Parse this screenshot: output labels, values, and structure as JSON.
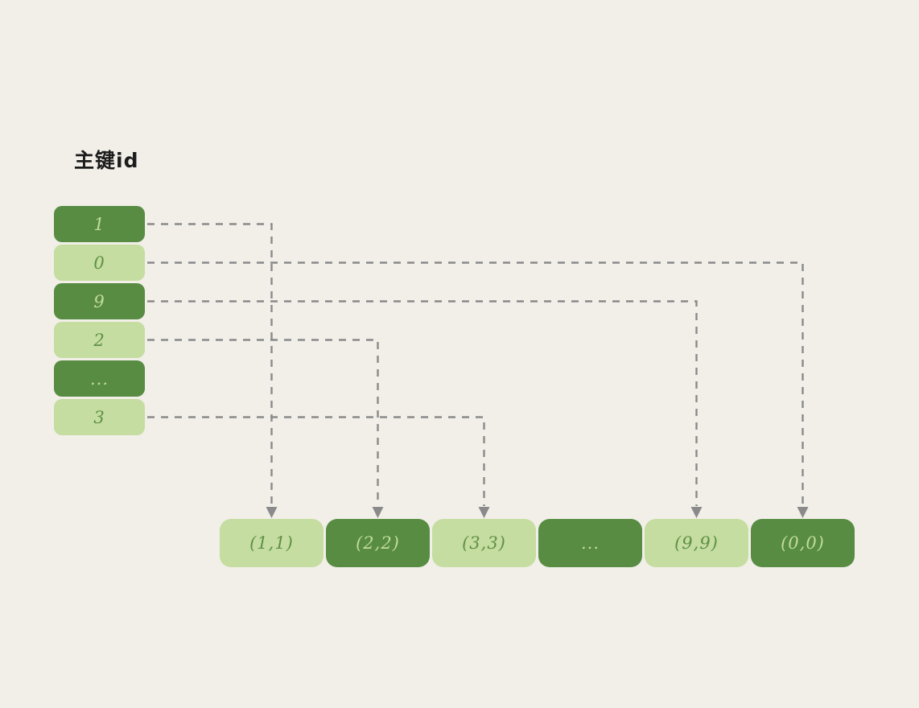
{
  "title": "主键id",
  "colors": {
    "background": "#f1efe8",
    "node_dark": "#578c42",
    "node_light": "#c5dda0",
    "text_on_dark": "#c2dc9a",
    "text_on_light": "#5f9046",
    "connector": "#8a8a8a",
    "title_color": "#1c1c1c"
  },
  "left_column": {
    "items": [
      {
        "label": "1",
        "variant": "dark"
      },
      {
        "label": "0",
        "variant": "light"
      },
      {
        "label": "9",
        "variant": "dark"
      },
      {
        "label": "2",
        "variant": "light"
      },
      {
        "label": "...",
        "variant": "dark"
      },
      {
        "label": "3",
        "variant": "light"
      }
    ]
  },
  "bottom_row": {
    "items": [
      {
        "label": "(1,1)",
        "variant": "light"
      },
      {
        "label": "(2,2)",
        "variant": "dark"
      },
      {
        "label": "(3,3)",
        "variant": "light"
      },
      {
        "label": "...",
        "variant": "dark"
      },
      {
        "label": "(9,9)",
        "variant": "light"
      },
      {
        "label": "(0,0)",
        "variant": "dark"
      }
    ]
  },
  "mappings": [
    {
      "from": 0,
      "to": 0
    },
    {
      "from": 1,
      "to": 5
    },
    {
      "from": 2,
      "to": 4
    },
    {
      "from": 3,
      "to": 1
    },
    {
      "from": 5,
      "to": 2
    }
  ]
}
